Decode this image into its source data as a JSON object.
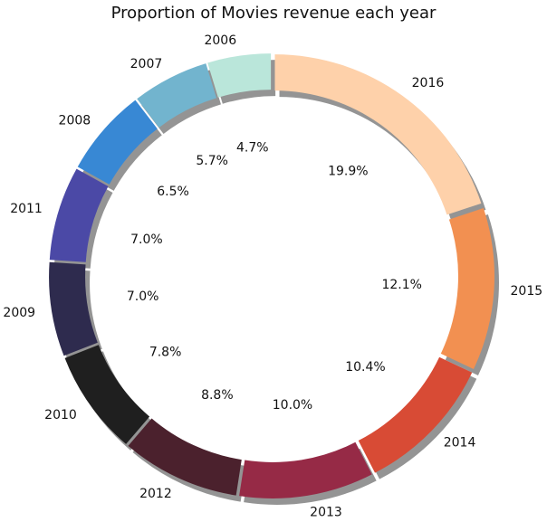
{
  "chart_data": {
    "type": "pie",
    "style": "donut-exploded-shadow",
    "title": "Proportion of Movies revenue each year",
    "start_angle_deg": 90,
    "direction": "clockwise",
    "slices": [
      {
        "label": "2016",
        "value": 19.9,
        "pct_label": "19.9%",
        "color": "#FED1AA"
      },
      {
        "label": "2015",
        "value": 12.1,
        "pct_label": "12.1%",
        "color": "#F29051"
      },
      {
        "label": "2014",
        "value": 10.4,
        "pct_label": "10.4%",
        "color": "#D84B35"
      },
      {
        "label": "2013",
        "value": 10.0,
        "pct_label": "10.0%",
        "color": "#962A46"
      },
      {
        "label": "2012",
        "value": 8.8,
        "pct_label": "8.8%",
        "color": "#4B212D"
      },
      {
        "label": "2010",
        "value": 7.8,
        "pct_label": "7.8%",
        "color": "#1F1F1F"
      },
      {
        "label": "2009",
        "value": 7.0,
        "pct_label": "7.0%",
        "color": "#2E2B4E"
      },
      {
        "label": "2011",
        "value": 7.0,
        "pct_label": "7.0%",
        "color": "#4B49A6"
      },
      {
        "label": "2008",
        "value": 6.5,
        "pct_label": "6.5%",
        "color": "#3888D4"
      },
      {
        "label": "2007",
        "value": 5.7,
        "pct_label": "5.7%",
        "color": "#72B4CE"
      },
      {
        "label": "2006",
        "value": 4.7,
        "pct_label": "4.7%",
        "color": "#BAE6DA"
      }
    ]
  }
}
